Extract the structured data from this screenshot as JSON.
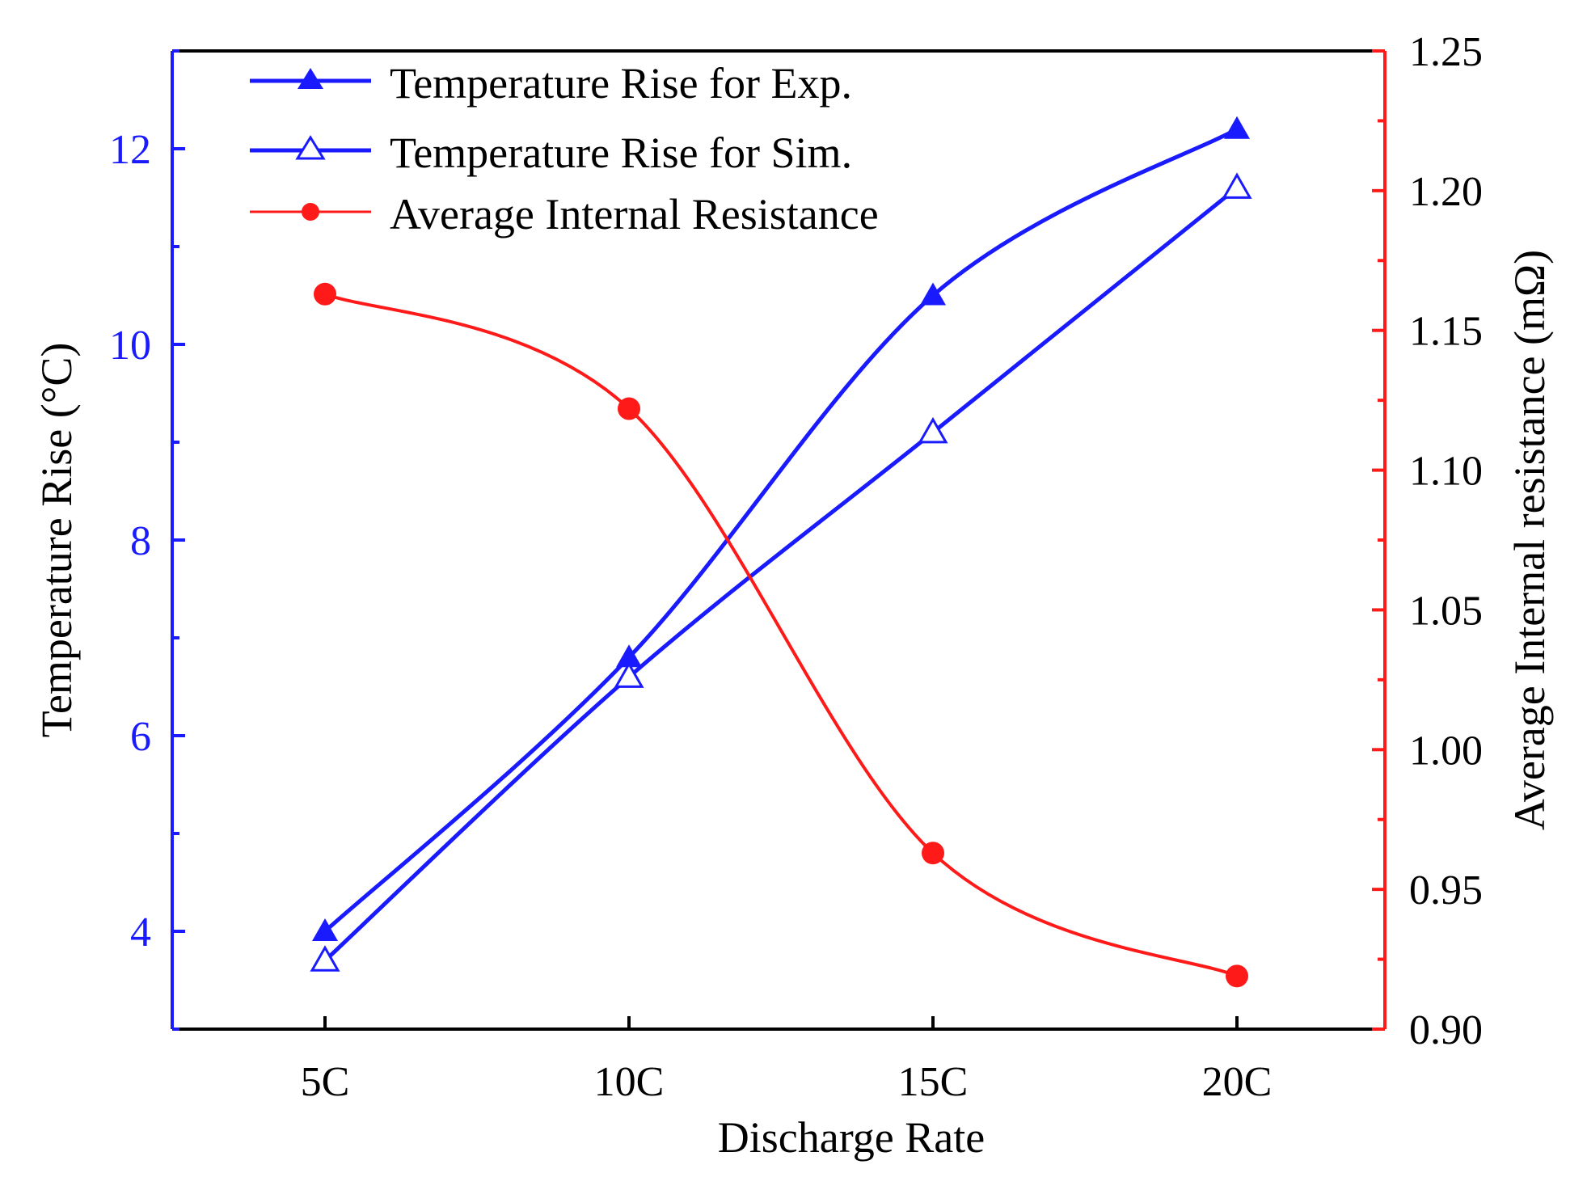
{
  "chart_data": {
    "type": "line",
    "title": "",
    "xlabel": "Discharge Rate",
    "ylabel_left": "Temperature Rise (°C)",
    "ylabel_right": "Average Internal resistance (mΩ)",
    "categories": [
      "5C",
      "10C",
      "15C",
      "20C"
    ],
    "x_axis": {
      "range": [
        0,
        1
      ]
    },
    "y_left": {
      "range": [
        3.0,
        13.0
      ],
      "ticks": [
        4,
        6,
        8,
        10,
        12
      ],
      "tick_labels": [
        "4",
        "6",
        "8",
        "10",
        "12"
      ],
      "color": "#1a1aff"
    },
    "y_right": {
      "range": [
        0.9,
        1.25
      ],
      "ticks": [
        0.9,
        0.95,
        1.0,
        1.05,
        1.1,
        1.15,
        1.2,
        1.25
      ],
      "tick_labels": [
        "0.90",
        "0.95",
        "1.00",
        "1.05",
        "1.10",
        "1.15",
        "1.20",
        "1.25"
      ],
      "color": "#ff1a1a"
    },
    "series": [
      {
        "name": "Temperature Rise for Exp.",
        "axis": "left",
        "marker": "filled-triangle",
        "color": "#1a1aff",
        "values": [
          4.0,
          6.8,
          10.5,
          12.2
        ]
      },
      {
        "name": "Temperature Rise for Sim.",
        "axis": "left",
        "marker": "hollow-triangle",
        "color": "#1a1aff",
        "values": [
          3.7,
          6.6,
          9.1,
          11.6
        ]
      },
      {
        "name": "Average Internal Resistance",
        "axis": "right",
        "marker": "filled-circle",
        "color": "#ff1a1a",
        "values": [
          1.163,
          1.122,
          0.963,
          0.919
        ]
      }
    ],
    "legend": {
      "position": "top-left"
    },
    "grid": false
  },
  "colors": {
    "left_axis": "#1a1aff",
    "right_axis": "#ff1a1a",
    "bottom_axis": "#000000"
  }
}
